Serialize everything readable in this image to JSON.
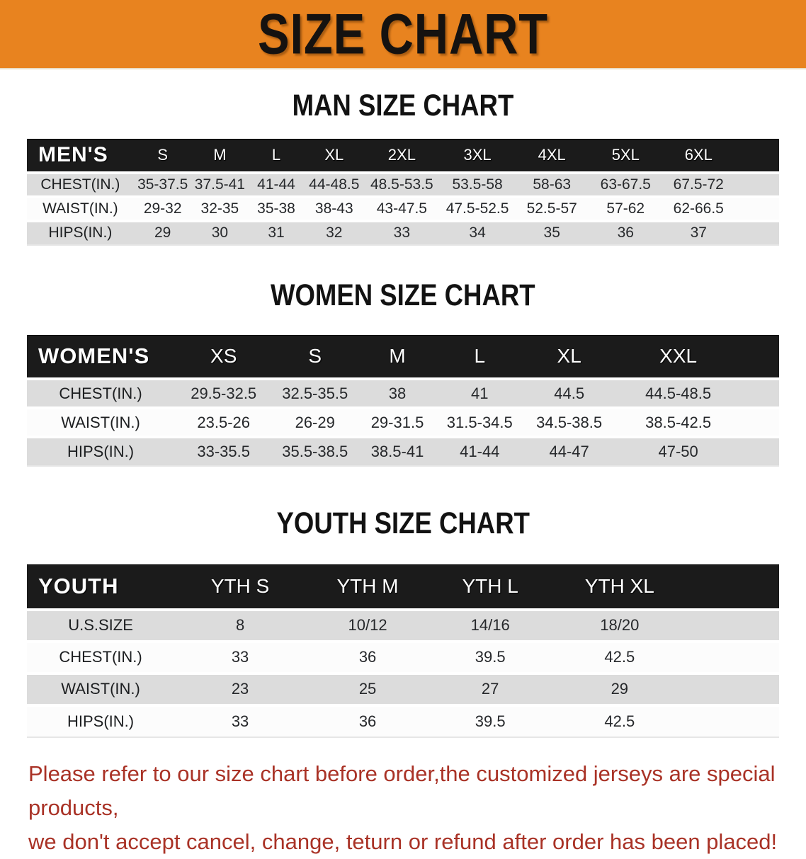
{
  "banner": {
    "title": "SIZE CHART"
  },
  "colors": {
    "banner-bg": "#E8831F",
    "header-bar": "#1B1B1B",
    "stripe": "#DCDCDC",
    "disclaimer": "#A93226"
  },
  "sections": [
    {
      "heading": "MAN SIZE CHART",
      "table": {
        "header_label": "MEN'S",
        "columns": [
          "S",
          "M",
          "L",
          "XL",
          "2XL",
          "3XL",
          "4XL",
          "5XL",
          "6XL"
        ],
        "rows": [
          {
            "label": "CHEST(IN.)",
            "values": [
              "35-37.5",
              "37.5-41",
              "41-44",
              "44-48.5",
              "48.5-53.5",
              "53.5-58",
              "58-63",
              "63-67.5",
              "67.5-72"
            ]
          },
          {
            "label": "WAIST(IN.)",
            "values": [
              "29-32",
              "32-35",
              "35-38",
              "38-43",
              "43-47.5",
              "47.5-52.5",
              "52.5-57",
              "57-62",
              "62-66.5"
            ]
          },
          {
            "label": "HIPS(IN.)",
            "values": [
              "29",
              "30",
              "31",
              "32",
              "33",
              "34",
              "35",
              "36",
              "37"
            ]
          }
        ]
      }
    },
    {
      "heading": "WOMEN SIZE CHART",
      "table": {
        "header_label": "WOMEN'S",
        "columns": [
          "XS",
          "S",
          "M",
          "L",
          "XL",
          "XXL"
        ],
        "rows": [
          {
            "label": "CHEST(IN.)",
            "values": [
              "29.5-32.5",
              "32.5-35.5",
              "38",
              "41",
              "44.5",
              "44.5-48.5"
            ]
          },
          {
            "label": "WAIST(IN.)",
            "values": [
              "23.5-26",
              "26-29",
              "29-31.5",
              "31.5-34.5",
              "34.5-38.5",
              "38.5-42.5"
            ]
          },
          {
            "label": "HIPS(IN.)",
            "values": [
              "33-35.5",
              "35.5-38.5",
              "38.5-41",
              "41-44",
              "44-47",
              "47-50"
            ]
          }
        ]
      }
    },
    {
      "heading": "YOUTH SIZE CHART",
      "table": {
        "header_label": "YOUTH",
        "columns": [
          "YTH S",
          "YTH M",
          "YTH L",
          "YTH XL"
        ],
        "rows": [
          {
            "label": "U.S.SIZE",
            "values": [
              "8",
              "10/12",
              "14/16",
              "18/20"
            ]
          },
          {
            "label": "CHEST(IN.)",
            "values": [
              "33",
              "36",
              "39.5",
              "42.5"
            ]
          },
          {
            "label": "WAIST(IN.)",
            "values": [
              "23",
              "25",
              "27",
              "29"
            ]
          },
          {
            "label": "HIPS(IN.)",
            "values": [
              "33",
              "36",
              "39.5",
              "42.5"
            ]
          }
        ]
      }
    }
  ],
  "disclaimer": {
    "line1": "Please refer to our size chart before order,the customized jerseys are special products,",
    "line2": "we don't accept cancel, change, teturn or refund after order has been placed!"
  }
}
